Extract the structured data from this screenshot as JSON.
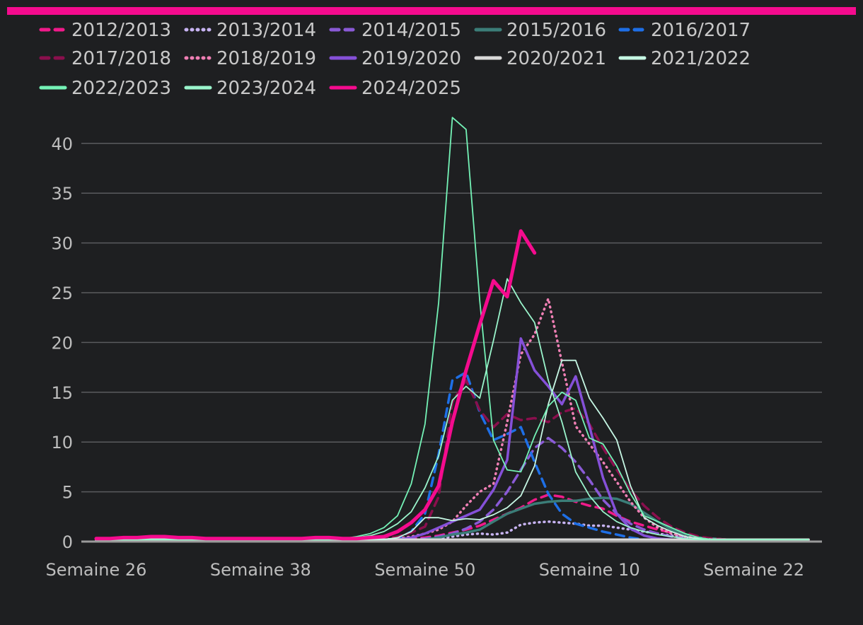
{
  "chart_data": {
    "type": "line",
    "title": "",
    "xlabel": "",
    "ylabel": "",
    "accent_color": "#f50b8e",
    "ylim": [
      0,
      42
    ],
    "yticks": [
      0,
      5,
      10,
      15,
      20,
      25,
      30,
      35,
      40
    ],
    "x_tick_labels": [
      {
        "week_index": 0,
        "label": "Semaine 26"
      },
      {
        "week_index": 12,
        "label": "Semaine 38"
      },
      {
        "week_index": 24,
        "label": "Semaine 50"
      },
      {
        "week_index": 36,
        "label": "Semaine 10"
      },
      {
        "week_index": 48,
        "label": "Semaine 22"
      }
    ],
    "x_range": [
      0,
      52
    ],
    "grid": "horizontal",
    "legend_position": "top",
    "series": [
      {
        "name": "2012/2013",
        "color": "#f01a8a",
        "style": "dashed",
        "width": 3.5,
        "values": [
          0.2,
          0.2,
          0.2,
          0.2,
          0.2,
          0.2,
          0.2,
          0.2,
          0.2,
          0.2,
          0.2,
          0.2,
          0.2,
          0.2,
          0.2,
          0.2,
          0.2,
          0.2,
          0.2,
          0.2,
          0.2,
          0.2,
          0.2,
          0.3,
          0.4,
          0.6,
          0.9,
          1.2,
          1.6,
          2.2,
          2.8,
          3.4,
          4.2,
          4.7,
          4.5,
          4.0,
          3.6,
          3.3,
          2.6,
          2.0,
          1.6,
          1.2,
          0.9,
          0.6,
          0.4,
          0.3,
          0.2,
          0.2,
          0.2,
          0.2,
          0.2,
          0.2,
          0.2
        ]
      },
      {
        "name": "2013/2014",
        "color": "#c7b3f2",
        "style": "dotted",
        "width": 3.5,
        "values": [
          0.1,
          0.1,
          0.1,
          0.1,
          0.1,
          0.1,
          0.1,
          0.1,
          0.1,
          0.1,
          0.1,
          0.1,
          0.1,
          0.1,
          0.1,
          0.1,
          0.1,
          0.1,
          0.1,
          0.1,
          0.1,
          0.1,
          0.1,
          0.1,
          0.2,
          0.3,
          0.5,
          0.7,
          0.8,
          0.7,
          0.9,
          1.7,
          1.9,
          2.0,
          1.9,
          1.8,
          1.6,
          1.6,
          1.4,
          1.2,
          1.0,
          0.8,
          0.6,
          0.4,
          0.3,
          0.2,
          0.2,
          0.1,
          0.1,
          0.1,
          0.1,
          0.1,
          0.1
        ]
      },
      {
        "name": "2014/2015",
        "color": "#8a5ad6",
        "style": "dashed",
        "width": 3.5,
        "values": [
          0.1,
          0.1,
          0.1,
          0.1,
          0.1,
          0.1,
          0.1,
          0.1,
          0.1,
          0.1,
          0.1,
          0.1,
          0.1,
          0.1,
          0.1,
          0.1,
          0.1,
          0.1,
          0.1,
          0.1,
          0.1,
          0.1,
          0.1,
          0.2,
          0.3,
          0.5,
          0.8,
          1.3,
          2.0,
          3.2,
          5.0,
          7.2,
          9.4,
          10.4,
          9.4,
          8.0,
          6.2,
          4.2,
          2.8,
          1.8,
          1.2,
          0.8,
          0.5,
          0.3,
          0.2,
          0.2,
          0.1,
          0.1,
          0.1,
          0.1,
          0.1,
          0.1,
          0.1
        ]
      },
      {
        "name": "2015/2016",
        "color": "#3b7d78",
        "style": "solid",
        "width": 3.5,
        "values": [
          0.1,
          0.1,
          0.1,
          0.1,
          0.1,
          0.1,
          0.1,
          0.1,
          0.1,
          0.1,
          0.1,
          0.1,
          0.1,
          0.1,
          0.1,
          0.1,
          0.1,
          0.1,
          0.1,
          0.1,
          0.1,
          0.1,
          0.1,
          0.1,
          0.2,
          0.4,
          0.7,
          0.9,
          1.2,
          2.0,
          2.8,
          3.3,
          3.8,
          4.0,
          4.1,
          4.1,
          4.3,
          4.4,
          4.3,
          3.8,
          2.9,
          2.0,
          1.2,
          0.7,
          0.4,
          0.3,
          0.2,
          0.1,
          0.1,
          0.1,
          0.1,
          0.1,
          0.1
        ]
      },
      {
        "name": "2016/2017",
        "color": "#1e6fe6",
        "style": "dashed",
        "width": 3.5,
        "values": [
          0.2,
          0.2,
          0.2,
          0.2,
          0.2,
          0.2,
          0.2,
          0.2,
          0.2,
          0.2,
          0.2,
          0.2,
          0.2,
          0.2,
          0.2,
          0.2,
          0.2,
          0.2,
          0.2,
          0.2,
          0.2,
          0.2,
          0.3,
          1.0,
          2.8,
          8.8,
          16.2,
          17.0,
          13.0,
          10.2,
          10.8,
          11.5,
          8.0,
          4.8,
          2.8,
          1.8,
          1.4,
          1.0,
          0.7,
          0.4,
          0.2,
          0.1,
          0.1,
          0.1,
          0.1,
          0.1,
          0.1,
          0.1,
          0.1,
          0.1,
          0.1,
          0.1,
          0.1
        ]
      },
      {
        "name": "2017/2018",
        "color": "#8a0f4d",
        "style": "dashed",
        "width": 3.5,
        "values": [
          0.2,
          0.2,
          0.2,
          0.2,
          0.2,
          0.2,
          0.2,
          0.2,
          0.2,
          0.2,
          0.2,
          0.2,
          0.2,
          0.2,
          0.2,
          0.2,
          0.2,
          0.2,
          0.2,
          0.2,
          0.2,
          0.3,
          0.5,
          0.9,
          1.5,
          4.5,
          14.0,
          16.2,
          13.2,
          11.5,
          12.8,
          12.2,
          12.4,
          12.0,
          13.0,
          13.4,
          11.8,
          9.4,
          7.2,
          5.2,
          3.6,
          2.4,
          1.5,
          0.9,
          0.5,
          0.3,
          0.2,
          0.2,
          0.2,
          0.2,
          0.2,
          0.2,
          0.2
        ]
      },
      {
        "name": "2018/2019",
        "color": "#ef7fb4",
        "style": "dotted",
        "width": 3.5,
        "values": [
          0.2,
          0.2,
          0.2,
          0.2,
          0.2,
          0.2,
          0.2,
          0.2,
          0.2,
          0.2,
          0.2,
          0.2,
          0.2,
          0.2,
          0.2,
          0.2,
          0.2,
          0.2,
          0.2,
          0.2,
          0.2,
          0.2,
          0.3,
          0.5,
          0.8,
          1.2,
          2.0,
          3.6,
          5.0,
          5.8,
          12.0,
          18.8,
          20.8,
          24.4,
          18.0,
          11.6,
          9.8,
          8.0,
          6.0,
          4.0,
          2.4,
          1.4,
          0.8,
          0.5,
          0.3,
          0.2,
          0.2,
          0.2,
          0.2,
          0.2,
          0.2,
          0.2,
          0.2
        ]
      },
      {
        "name": "2019/2020",
        "color": "#8550d8",
        "style": "solid",
        "width": 3.5,
        "values": [
          0.1,
          0.1,
          0.1,
          0.1,
          0.1,
          0.1,
          0.1,
          0.1,
          0.1,
          0.1,
          0.1,
          0.1,
          0.1,
          0.1,
          0.1,
          0.1,
          0.1,
          0.1,
          0.1,
          0.1,
          0.1,
          0.1,
          0.2,
          0.4,
          0.8,
          1.4,
          2.0,
          2.6,
          3.2,
          5.2,
          8.2,
          20.4,
          17.2,
          15.6,
          13.8,
          16.6,
          11.6,
          6.4,
          2.8,
          1.3,
          0.6,
          0.3,
          0.2,
          0.1,
          0.1,
          0.1,
          0.1,
          0.1,
          0.1,
          0.1,
          0.1,
          0.1,
          0.1
        ]
      },
      {
        "name": "2020/2021",
        "color": "#d9d9d9",
        "style": "solid",
        "width": 3.5,
        "values": [
          0.2,
          0.2,
          0.2,
          0.2,
          0.2,
          0.2,
          0.2,
          0.2,
          0.2,
          0.2,
          0.2,
          0.2,
          0.2,
          0.2,
          0.2,
          0.2,
          0.2,
          0.2,
          0.2,
          0.2,
          0.2,
          0.2,
          0.2,
          0.2,
          0.2,
          0.2,
          0.2,
          0.2,
          0.2,
          0.2,
          0.2,
          0.2,
          0.2,
          0.2,
          0.2,
          0.2,
          0.2,
          0.2,
          0.2,
          0.2,
          0.2,
          0.2,
          0.2,
          0.2,
          0.2,
          0.2,
          0.2,
          0.2,
          0.2,
          0.2,
          0.2,
          0.2,
          0.2
        ]
      },
      {
        "name": "2021/2022",
        "color": "#c6f7e4",
        "style": "solid",
        "width": 1.8,
        "values": [
          0.2,
          0.2,
          0.2,
          0.2,
          0.2,
          0.2,
          0.2,
          0.2,
          0.2,
          0.2,
          0.2,
          0.2,
          0.2,
          0.2,
          0.2,
          0.2,
          0.2,
          0.2,
          0.2,
          0.2,
          0.2,
          0.2,
          0.4,
          1.0,
          2.4,
          2.4,
          2.1,
          2.3,
          2.2,
          2.7,
          3.4,
          4.6,
          7.6,
          13.8,
          18.2,
          18.2,
          14.4,
          12.4,
          10.2,
          5.6,
          2.4,
          1.6,
          1.0,
          0.5,
          0.3,
          0.2,
          0.2,
          0.2,
          0.2,
          0.2,
          0.2,
          0.2,
          0.2
        ]
      },
      {
        "name": "2022/2023",
        "color": "#74f2b6",
        "style": "solid",
        "width": 1.8,
        "values": [
          0.2,
          0.2,
          0.2,
          0.2,
          0.2,
          0.2,
          0.2,
          0.2,
          0.2,
          0.2,
          0.2,
          0.2,
          0.2,
          0.2,
          0.2,
          0.2,
          0.2,
          0.2,
          0.3,
          0.5,
          0.8,
          1.4,
          2.6,
          5.8,
          11.8,
          24.0,
          42.6,
          41.4,
          24.2,
          10.2,
          7.2,
          7.0,
          10.6,
          13.6,
          15.0,
          14.2,
          10.4,
          9.8,
          7.6,
          4.8,
          2.6,
          2.0,
          1.4,
          0.8,
          0.4,
          0.2,
          0.2,
          0.2,
          0.2,
          0.2,
          0.2,
          0.2,
          0.2
        ]
      },
      {
        "name": "2023/2024",
        "color": "#9af5cc",
        "style": "solid",
        "width": 1.8,
        "values": [
          0.2,
          0.2,
          0.2,
          0.2,
          0.2,
          0.2,
          0.2,
          0.2,
          0.2,
          0.2,
          0.2,
          0.2,
          0.2,
          0.2,
          0.2,
          0.2,
          0.2,
          0.2,
          0.3,
          0.4,
          0.6,
          1.0,
          1.8,
          3.0,
          5.4,
          8.6,
          14.2,
          15.6,
          14.4,
          20.2,
          26.4,
          24.0,
          22.0,
          16.2,
          12.0,
          7.0,
          4.6,
          3.0,
          2.0,
          1.4,
          1.0,
          0.7,
          0.5,
          0.3,
          0.2,
          0.2,
          0.2,
          0.2,
          0.2,
          0.2,
          0.2,
          0.2,
          0.2
        ]
      },
      {
        "name": "2024/2025",
        "color": "#f50b8e",
        "style": "solid",
        "width": 5,
        "values": [
          0.3,
          0.3,
          0.4,
          0.4,
          0.5,
          0.5,
          0.4,
          0.4,
          0.3,
          0.3,
          0.3,
          0.3,
          0.3,
          0.3,
          0.3,
          0.3,
          0.4,
          0.4,
          0.3,
          0.3,
          0.4,
          0.5,
          1.0,
          1.9,
          3.2,
          5.6,
          12.0,
          17.2,
          21.8,
          26.2,
          24.6,
          31.2,
          29.0
        ]
      }
    ]
  }
}
